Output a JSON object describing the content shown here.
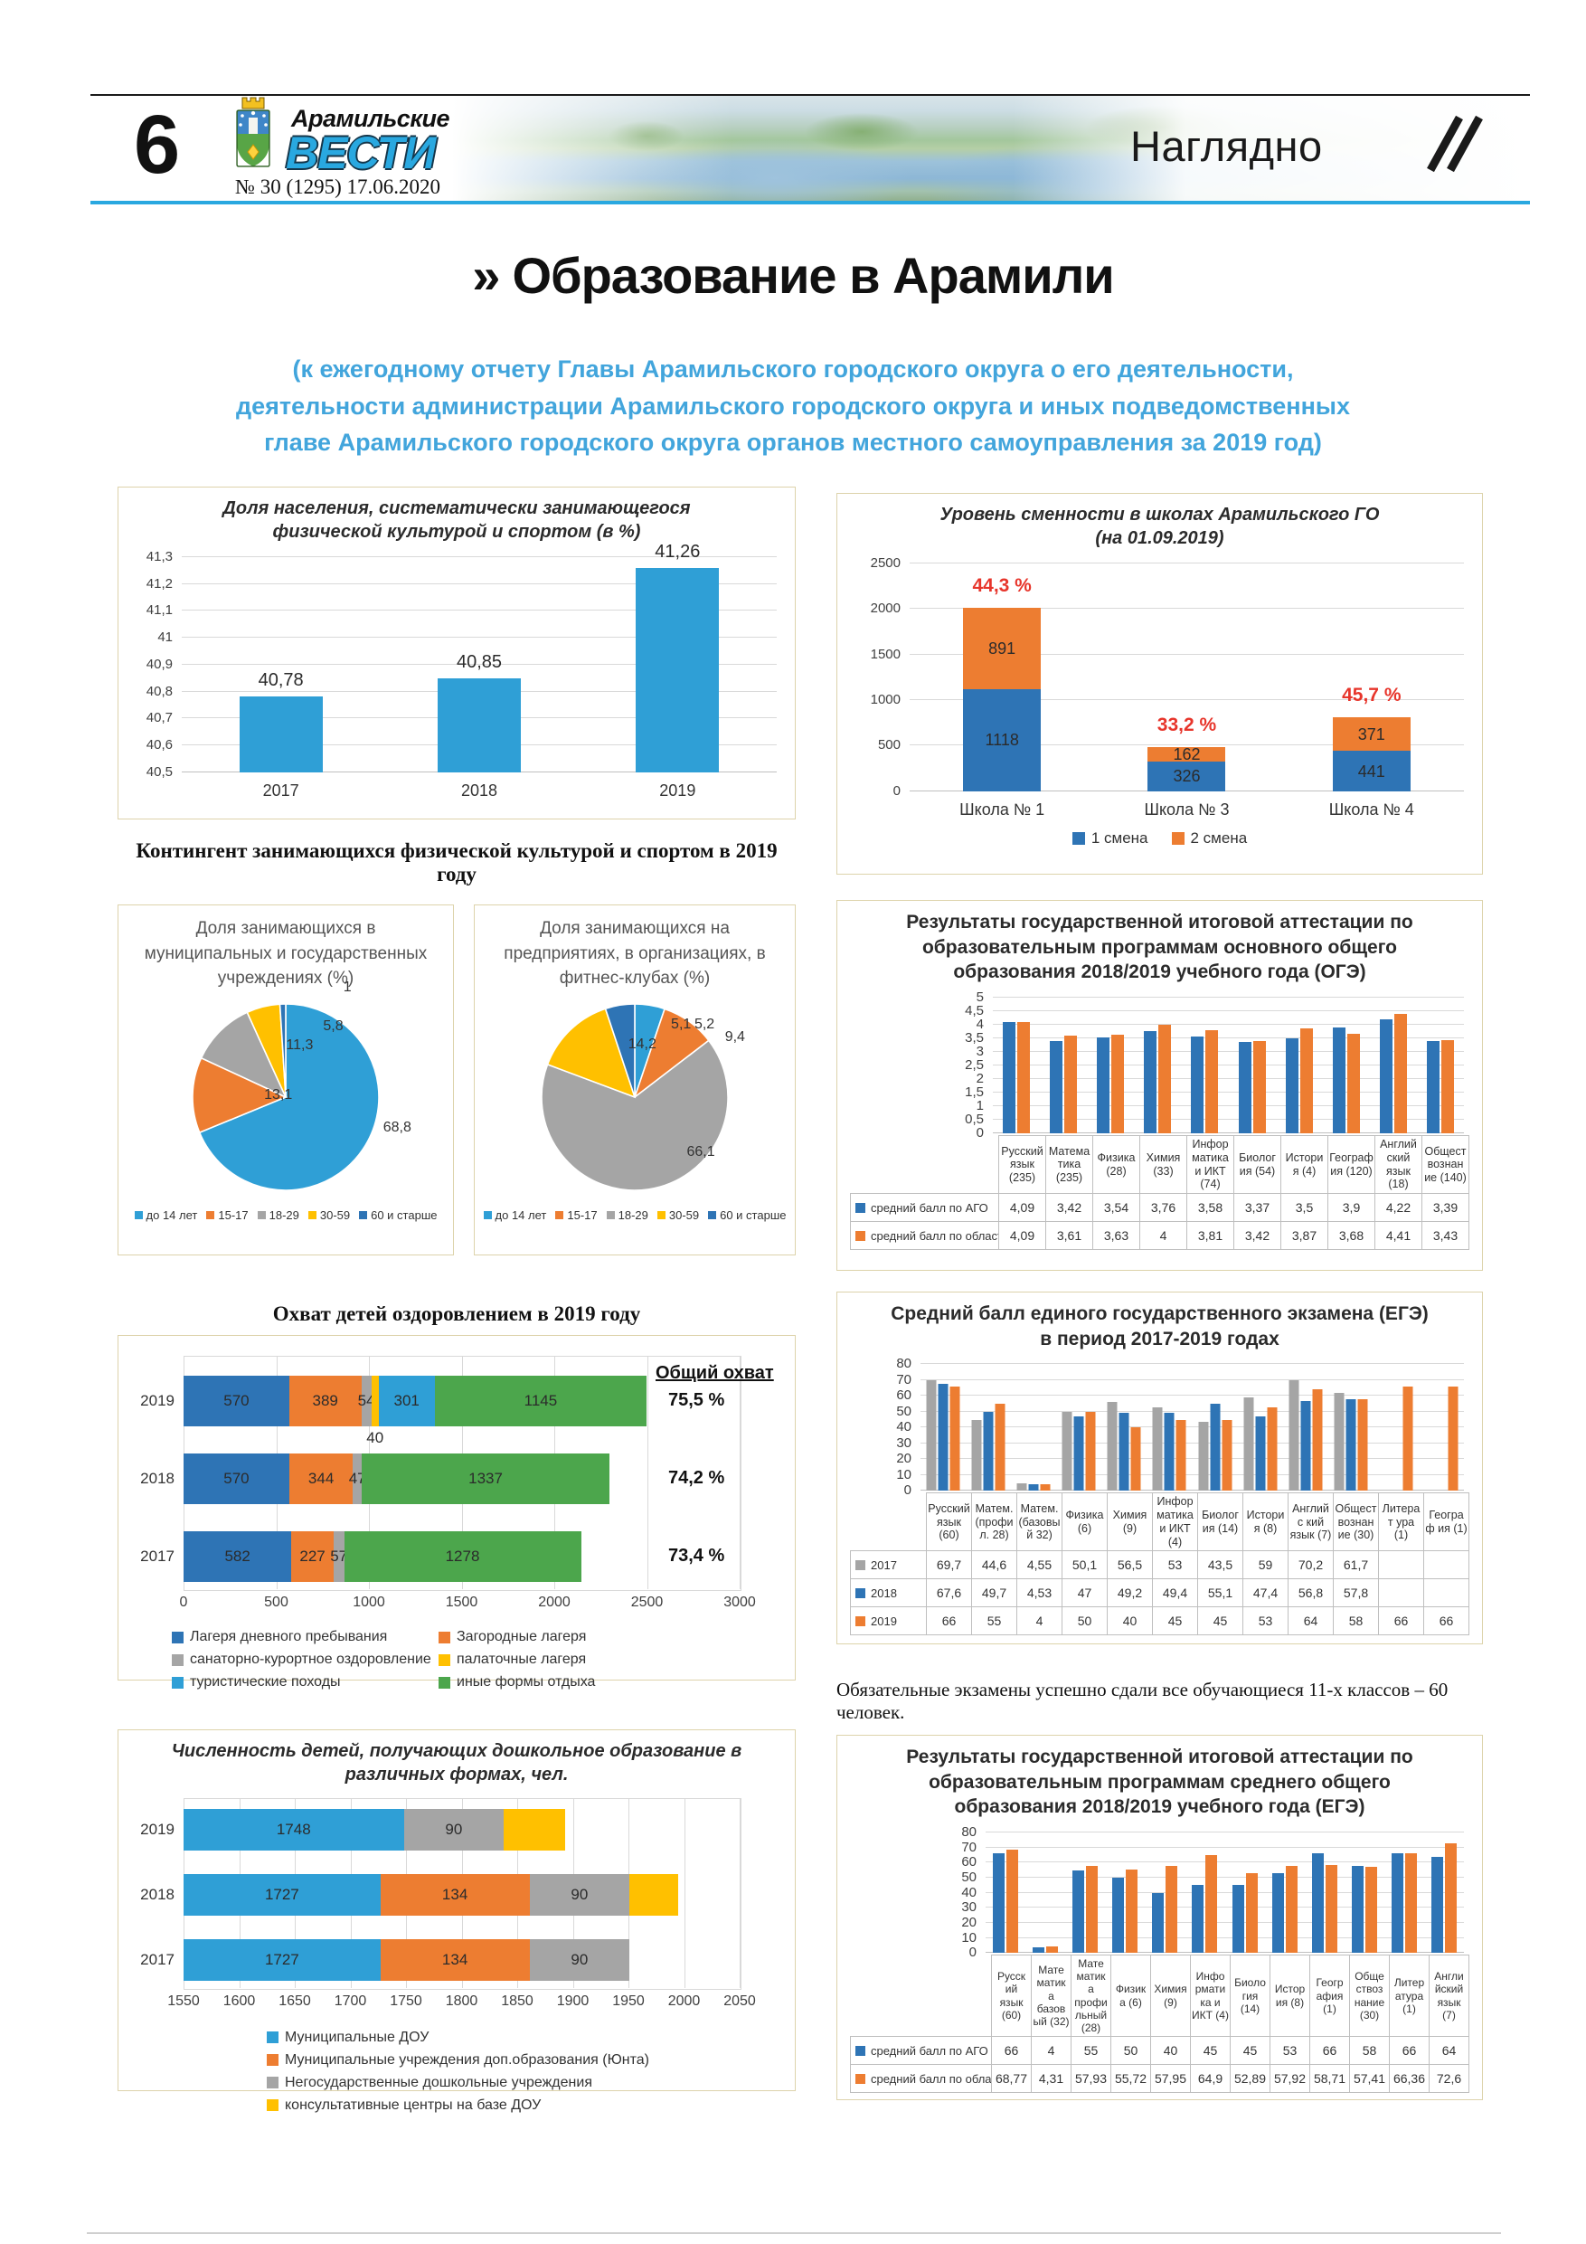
{
  "header": {
    "page_number": "6",
    "brand_top": "Арамильские",
    "brand_main": "ВЕСТИ",
    "issue": "№ 30 (1295) 17.06.2020",
    "section": "Наглядно"
  },
  "title": {
    "marker": "»",
    "text": "Образование в Арамили",
    "subtitle_lines": [
      "(к ежегодному отчету Главы Арамильского городского округа о его деятельности,",
      "деятельности администрации Арамильского городского округа и иных подведомственных",
      "главе Арамильского городского округа органов местного самоуправления за 2019 год)"
    ]
  },
  "sections": {
    "kontingent": "Контингент занимающихся физической культурой и спортом в 2019 году"
  },
  "note": "Обязательные экзамены успешно сдали все обучающиеся 11-х классов – 60 человек.",
  "palette": {
    "blue": "#2e74b5",
    "lightBlue": "#2f9fd6",
    "orange": "#ed7d31",
    "gray": "#a5a5a5",
    "yellow": "#ffc000",
    "green": "#4ca64c",
    "red": "#e7352b",
    "brandCyan": "#29a8e0",
    "subtitleBlue": "#42a5dc"
  },
  "chart_data": [
    {
      "id": "sport_share",
      "type": "bar",
      "title": "Доля населения, систематически занимающегося\nфизической культурой и спортом (в %)",
      "categories": [
        "2017",
        "2018",
        "2019"
      ],
      "bar_labels": true,
      "series": [
        {
          "name": "",
          "color": "lightBlue",
          "values": [
            40.78,
            40.85,
            41.26
          ],
          "labels": [
            "40,78",
            "40,85",
            "41,26"
          ]
        }
      ],
      "ylim": [
        40.5,
        41.3
      ],
      "yticks": [
        {
          "v": 40.5,
          "l": "40,5"
        },
        {
          "v": 40.6,
          "l": "40,6"
        },
        {
          "v": 40.7,
          "l": "40,7"
        },
        {
          "v": 40.8,
          "l": "40,8"
        },
        {
          "v": 40.9,
          "l": "40,9"
        },
        {
          "v": 41,
          "l": "41"
        },
        {
          "v": 41.1,
          "l": "41,1"
        },
        {
          "v": 41.2,
          "l": "41,2"
        },
        {
          "v": 41.3,
          "l": "41,3"
        }
      ]
    },
    {
      "id": "school_shifts",
      "type": "stacked-bar",
      "title": "Уровень сменности в школах Арамильского ГО\n(на 01.09.2019)",
      "categories": [
        "Школа № 1",
        "Школа № 3",
        "Школа № 4"
      ],
      "series": [
        {
          "name": "1 смена",
          "color": "blue",
          "values": [
            1118,
            326,
            441
          ],
          "labels": [
            "1118",
            "326",
            "441"
          ]
        },
        {
          "name": "2 смена",
          "color": "orange",
          "values": [
            891,
            162,
            371
          ],
          "labels": [
            "891",
            "162",
            "371"
          ]
        }
      ],
      "annotations": [
        "44,3 %",
        "33,2 %",
        "45,7 %"
      ],
      "legend": true,
      "ylim": [
        0,
        2500
      ],
      "yticks": [
        {
          "v": 0,
          "l": "0"
        },
        {
          "v": 500,
          "l": "500"
        },
        {
          "v": 1000,
          "l": "1000"
        },
        {
          "v": 1500,
          "l": "1500"
        },
        {
          "v": 2000,
          "l": "2000"
        },
        {
          "v": 2500,
          "l": "2500"
        }
      ]
    },
    {
      "id": "pie_municipal",
      "type": "pie",
      "title": "Доля занимающихся в\nмуниципальных и государственных\nучреждениях (%)",
      "legend": [
        "до 14 лет",
        "15-17",
        "18-29",
        "30-59",
        "60 и старше"
      ],
      "values": [
        68.8,
        13.1,
        11.3,
        5.8,
        1
      ],
      "labels": [
        "68,8",
        "13,1",
        "11,3",
        "5,8",
        "1"
      ],
      "colors": [
        "lightBlue",
        "orange",
        "gray",
        "yellow",
        "blue"
      ]
    },
    {
      "id": "pie_fitness",
      "type": "pie",
      "title": "Доля занимающихся на\nпредприятиях, в организациях, в\nфитнес-клубах (%)",
      "legend": [
        "до 14 лет",
        "15-17",
        "18-29",
        "30-59",
        "60 и старше"
      ],
      "values": [
        5.2,
        9.4,
        66.1,
        14.2,
        5.1
      ],
      "labels": [
        "5,2",
        "9,4",
        "66,1",
        "14,2",
        "5,1"
      ],
      "colors": [
        "lightBlue",
        "orange",
        "gray",
        "yellow",
        "blue"
      ]
    },
    {
      "id": "oge_results",
      "type": "grouped-bar",
      "title": "Результаты государственной итоговой аттестации по\nобразовательным программам основного общего\nобразования 2018/2019 учебного года (ОГЭ)",
      "categories": [
        "Русский язык (235)",
        "Матема тика (235)",
        "Физика (28)",
        "Химия (33)",
        "Инфор матика и ИКТ (74)",
        "Биолог ия (54)",
        "Истори я (4)",
        "Географ ия (120)",
        "Англий ский язык (18)",
        "Общест вознан ие (140)"
      ],
      "table": true,
      "series": [
        {
          "name": "средний балл по АГО",
          "color": "blue",
          "values": [
            4.09,
            3.42,
            3.54,
            3.76,
            3.58,
            3.37,
            3.5,
            3.9,
            4.22,
            3.39
          ],
          "labels": [
            "4,09",
            "3,42",
            "3,54",
            "3,76",
            "3,58",
            "3,37",
            "3,5",
            "3,9",
            "4,22",
            "3,39"
          ]
        },
        {
          "name": "средний балл по области",
          "color": "orange",
          "values": [
            4.09,
            3.61,
            3.63,
            4,
            3.81,
            3.42,
            3.87,
            3.68,
            4.41,
            3.43
          ],
          "labels": [
            "4,09",
            "3,61",
            "3,63",
            "4",
            "3,81",
            "3,42",
            "3,87",
            "3,68",
            "4,41",
            "3,43"
          ]
        }
      ],
      "ylim": [
        0,
        5
      ],
      "yticks": [
        {
          "v": 0,
          "l": "0"
        },
        {
          "v": 0.5,
          "l": "0,5"
        },
        {
          "v": 1,
          "l": "1"
        },
        {
          "v": 1.5,
          "l": "1,5"
        },
        {
          "v": 2,
          "l": "2"
        },
        {
          "v": 2.5,
          "l": "2,5"
        },
        {
          "v": 3,
          "l": "3"
        },
        {
          "v": 3.5,
          "l": "3,5"
        },
        {
          "v": 4,
          "l": "4"
        },
        {
          "v": 4.5,
          "l": "4,5"
        },
        {
          "v": 5,
          "l": "5"
        }
      ]
    },
    {
      "id": "summer_health",
      "type": "hstacked-bar",
      "title": "Охват детей оздоровлением в 2019 году",
      "rows": [
        "2019",
        "2018",
        "2017"
      ],
      "series": [
        {
          "name": "Лагеря дневного пребывания",
          "color": "blue",
          "values": [
            570,
            570,
            582
          ],
          "labels": [
            "570",
            "570",
            "582"
          ]
        },
        {
          "name": "Загородные лагеря",
          "color": "orange",
          "values": [
            389,
            344,
            227
          ],
          "labels": [
            "389",
            "344",
            "227"
          ]
        },
        {
          "name": "санаторно-курортное оздоровление",
          "color": "gray",
          "values": [
            54,
            47,
            57
          ],
          "labels": [
            "54",
            "47",
            "57"
          ]
        },
        {
          "name": "палаточные лагеря",
          "color": "yellow",
          "values": [
            40,
            0,
            0
          ],
          "labels": [
            "40",
            "",
            ""
          ]
        },
        {
          "name": "туристические походы",
          "color": "lightBlue",
          "values": [
            301,
            0,
            0
          ],
          "labels": [
            "301",
            "",
            ""
          ]
        },
        {
          "name": "иные формы отдыха",
          "color": "green",
          "values": [
            1145,
            1337,
            1278
          ],
          "labels": [
            "1145",
            "1337",
            "1278"
          ]
        }
      ],
      "annotations_title": "Общий охват",
      "annotations": [
        "75,5 %",
        "74,2 %",
        "73,4 %"
      ],
      "xlim": [
        0,
        3000
      ],
      "xticks": [
        {
          "v": 0,
          "l": "0"
        },
        {
          "v": 500,
          "l": "500"
        },
        {
          "v": 1000,
          "l": "1000"
        },
        {
          "v": 1500,
          "l": "1500"
        },
        {
          "v": 2000,
          "l": "2000"
        },
        {
          "v": 2500,
          "l": "2500"
        },
        {
          "v": 3000,
          "l": "3000"
        }
      ]
    },
    {
      "id": "ege_dynamics",
      "type": "grouped-bar",
      "title": "Средний балл единого государственного экзамена (ЕГЭ)\nв период 2017-2019 годах",
      "categories": [
        "Русский язык (60)",
        "Матем. (профи л. 28)",
        "Матем. (базовы й 32)",
        "Физика (6)",
        "Химия (9)",
        "Инфор матика и ИКТ (4)",
        "Биолог ия (14)",
        "Истори я (8)",
        "Английс кий язык (7)",
        "Общест вознан ие (30)",
        "Литерат ура (1)",
        "Географ ия (1)"
      ],
      "table": true,
      "series": [
        {
          "name": "2017",
          "color": "gray",
          "values": [
            69.7,
            44.6,
            4.55,
            50.1,
            56.5,
            53,
            43.5,
            59,
            70.2,
            61.7,
            null,
            null
          ],
          "labels": [
            "69,7",
            "44,6",
            "4,55",
            "50,1",
            "56,5",
            "53",
            "43,5",
            "59",
            "70,2",
            "61,7",
            "",
            ""
          ]
        },
        {
          "name": "2018",
          "color": "blue",
          "values": [
            67.6,
            49.7,
            4.53,
            47,
            49.2,
            49.4,
            55.1,
            47.4,
            56.8,
            57.8,
            null,
            null
          ],
          "labels": [
            "67,6",
            "49,7",
            "4,53",
            "47",
            "49,2",
            "49,4",
            "55,1",
            "47,4",
            "56,8",
            "57,8",
            "",
            ""
          ]
        },
        {
          "name": "2019",
          "color": "orange",
          "values": [
            66,
            55,
            4,
            50,
            40,
            45,
            45,
            53,
            64,
            58,
            66,
            66
          ],
          "labels": [
            "66",
            "55",
            "4",
            "50",
            "40",
            "45",
            "45",
            "53",
            "64",
            "58",
            "66",
            "66"
          ]
        }
      ],
      "ylim": [
        0,
        80
      ],
      "yticks": [
        {
          "v": 0,
          "l": "0"
        },
        {
          "v": 10,
          "l": "10"
        },
        {
          "v": 20,
          "l": "20"
        },
        {
          "v": 30,
          "l": "30"
        },
        {
          "v": 40,
          "l": "40"
        },
        {
          "v": 50,
          "l": "50"
        },
        {
          "v": 60,
          "l": "60"
        },
        {
          "v": 70,
          "l": "70"
        },
        {
          "v": 80,
          "l": "80"
        }
      ]
    },
    {
      "id": "preschool_children",
      "type": "hstacked-bar",
      "title": "Численность детей, получающих дошкольное образование в\nразличных формах, чел.",
      "title_inside": true,
      "rows": [
        "2019",
        "2018",
        "2017"
      ],
      "series": [
        {
          "name": "Муниципальные ДОУ",
          "color": "lightBlue",
          "values": [
            1748,
            1727,
            1727
          ],
          "labels": [
            "1748",
            "1727",
            "1727"
          ]
        },
        {
          "name": "Муниципальные учреждения доп.образования (Юнта)",
          "color": "orange",
          "values": [
            0,
            134,
            134
          ],
          "labels": [
            "",
            "134",
            "134"
          ]
        },
        {
          "name": "Негосударственные дошкольные учреждения",
          "color": "gray",
          "values": [
            90,
            90,
            90
          ],
          "labels": [
            "90",
            "90",
            "90"
          ]
        },
        {
          "name": "консультативные центры на базе ДОУ",
          "color": "yellow",
          "values": [
            55,
            44,
            0
          ],
          "labels": [
            "",
            "",
            ""
          ]
        }
      ],
      "xlim": [
        1550,
        2050
      ],
      "xticks": [
        {
          "v": 1550,
          "l": "1550"
        },
        {
          "v": 1600,
          "l": "1600"
        },
        {
          "v": 1650,
          "l": "1650"
        },
        {
          "v": 1700,
          "l": "1700"
        },
        {
          "v": 1750,
          "l": "1750"
        },
        {
          "v": 1800,
          "l": "1800"
        },
        {
          "v": 1850,
          "l": "1850"
        },
        {
          "v": 1900,
          "l": "1900"
        },
        {
          "v": 1950,
          "l": "1950"
        },
        {
          "v": 2000,
          "l": "2000"
        },
        {
          "v": 2050,
          "l": "2050"
        }
      ]
    },
    {
      "id": "ege_results",
      "type": "grouped-bar",
      "title": "Результаты государственной итоговой аттестации по\nобразовательным программам среднего общего\nобразования 2018/2019 учебного года (ЕГЭ)",
      "categories": [
        "Русск ий язык (60)",
        "Мате матик а базов ый (32)",
        "Мате матик а профи льный (28)",
        "Физик а (6)",
        "Химия (9)",
        "Инфо рмати ка и ИКТ (4)",
        "Биоло гия (14)",
        "Истор ия (8)",
        "Геогр афия (1)",
        "Обще ствоз нание (30)",
        "Литер атура (1)",
        "Англи йский язык (7)"
      ],
      "table": true,
      "series": [
        {
          "name": "средний балл по АГО",
          "color": "blue",
          "values": [
            66,
            4,
            55,
            50,
            40,
            45,
            45,
            53,
            66,
            58,
            66,
            64
          ],
          "labels": [
            "66",
            "4",
            "55",
            "50",
            "40",
            "45",
            "45",
            "53",
            "66",
            "58",
            "66",
            "64"
          ]
        },
        {
          "name": "средний балл по области",
          "color": "orange",
          "values": [
            68.77,
            4.31,
            57.93,
            55.72,
            57.95,
            64.9,
            52.89,
            57.92,
            58.71,
            57.41,
            66.36,
            72.6
          ],
          "labels": [
            "68,77",
            "4,31",
            "57,93",
            "55,72",
            "57,95",
            "64,9",
            "52,89",
            "57,92",
            "58,71",
            "57,41",
            "66,36",
            "72,6"
          ]
        }
      ],
      "ylim": [
        0,
        80
      ],
      "yticks": [
        {
          "v": 0,
          "l": "0"
        },
        {
          "v": 10,
          "l": "10"
        },
        {
          "v": 20,
          "l": "20"
        },
        {
          "v": 30,
          "l": "30"
        },
        {
          "v": 40,
          "l": "40"
        },
        {
          "v": 50,
          "l": "50"
        },
        {
          "v": 60,
          "l": "60"
        },
        {
          "v": 70,
          "l": "70"
        },
        {
          "v": 80,
          "l": "80"
        }
      ]
    }
  ]
}
